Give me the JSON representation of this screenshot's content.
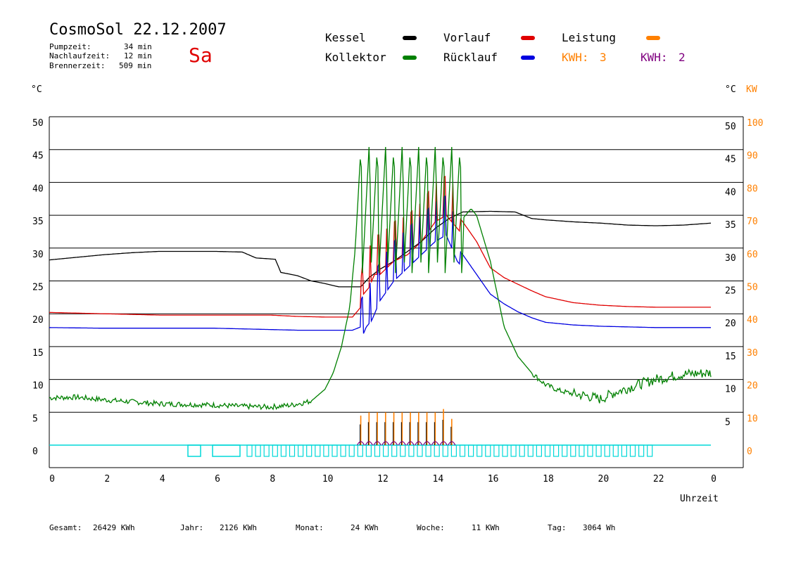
{
  "header": {
    "title": "CosmoSol 22.12.2007",
    "day": "Sa",
    "stats": [
      {
        "label": "Pumpzeit:",
        "value": "34 min"
      },
      {
        "label": "Nachlaufzeit:",
        "value": "12 min"
      },
      {
        "label": "Brennerzeit:",
        "value": "509 min"
      }
    ]
  },
  "legend": {
    "kessel": {
      "label": "Kessel",
      "color": "#000000"
    },
    "kollektor": {
      "label": "Kollektor",
      "color": "#008000"
    },
    "vorlauf": {
      "label": "Vorlauf",
      "color": "#e00000"
    },
    "ruecklauf": {
      "label": "Rücklauf",
      "color": "#0000e0"
    },
    "leistung": {
      "label": "Leistung",
      "color": "#ff8000"
    },
    "kwh1": {
      "label": "KWH:",
      "value": "3",
      "color": "#ff8000"
    },
    "kwh2": {
      "label": "KWH:",
      "value": "2",
      "color": "#800080"
    }
  },
  "axis_units": {
    "left": "°C",
    "right_temp": "°C",
    "right_power": "KW",
    "x": "Uhrzeit"
  },
  "footer": [
    {
      "label": "Gesamt:",
      "value": "26429 KWh"
    },
    {
      "label": "Jahr:",
      "value": "2126 KWh"
    },
    {
      "label": "Monat:",
      "value": "24 KWh"
    },
    {
      "label": "Woche:",
      "value": "11 KWh"
    },
    {
      "label": "Tag:",
      "value": "3064 Wh"
    }
  ],
  "chart_data": {
    "type": "line",
    "title": "CosmoSol 22.12.2007",
    "xlabel": "Uhrzeit",
    "ylabel": "°C",
    "xlim": [
      0,
      24
    ],
    "ylim": [
      0,
      50
    ],
    "y2lim": [
      0,
      100
    ],
    "x_ticks": [
      "0",
      "2",
      "4",
      "6",
      "8",
      "10",
      "12",
      "14",
      "16",
      "18",
      "20",
      "22",
      "0"
    ],
    "y_ticks": [
      "0",
      "5",
      "10",
      "15",
      "20",
      "25",
      "30",
      "35",
      "40",
      "45",
      "50"
    ],
    "y_ticks_right": [
      "5",
      "10",
      "15",
      "20",
      "25",
      "30",
      "35",
      "40",
      "45",
      "50"
    ],
    "y2_ticks": [
      "0",
      "10",
      "20",
      "30",
      "40",
      "50",
      "60",
      "70",
      "80",
      "90",
      "100"
    ],
    "grid": true,
    "series": [
      {
        "name": "Kessel",
        "color": "#000000",
        "x": [
          0,
          1,
          2,
          3,
          4,
          5,
          6,
          7,
          7.5,
          8.2,
          8.4,
          9,
          9.5,
          10,
          10.5,
          11.3,
          11.6,
          12,
          12.5,
          13,
          13.5,
          14,
          14.5,
          15,
          16,
          16.9,
          17.5,
          18,
          19,
          20,
          21,
          22,
          23,
          24
        ],
        "values": [
          28.2,
          28.6,
          29.0,
          29.3,
          29.5,
          29.5,
          29.5,
          29.4,
          28.5,
          28.3,
          26.3,
          25.8,
          25.0,
          24.6,
          24.1,
          24.1,
          25.5,
          26.8,
          28.0,
          29.5,
          31.0,
          33.0,
          34.5,
          35.5,
          35.6,
          35.5,
          34.5,
          34.3,
          34.0,
          33.8,
          33.5,
          33.4,
          33.5,
          33.8
        ]
      },
      {
        "name": "Vorlauf",
        "color": "#e00000",
        "x": [
          0,
          2,
          4,
          6,
          8,
          9,
          10,
          11,
          11.3,
          11.4,
          11.6,
          11.8,
          12,
          12.5,
          13,
          13.5,
          14,
          14.4,
          14.8,
          15,
          15.5,
          16,
          16.5,
          17,
          17.5,
          18,
          19,
          20,
          21,
          22,
          23,
          24
        ],
        "values": [
          20.2,
          20.0,
          19.8,
          19.8,
          19.8,
          19.6,
          19.5,
          19.5,
          21,
          25,
          26,
          28,
          28,
          30,
          31,
          33,
          36,
          37,
          35,
          34,
          31,
          27,
          25.5,
          24.5,
          23.5,
          22.6,
          21.7,
          21.3,
          21.1,
          21.0,
          21.0,
          21.0
        ]
      },
      {
        "name": "Rücklauf",
        "color": "#0000e0",
        "x": [
          0,
          2,
          4,
          6,
          8,
          9,
          10,
          11,
          11.3,
          11.5,
          11.7,
          12,
          12.5,
          13,
          13.5,
          14,
          14.4,
          14.8,
          15,
          15.5,
          16,
          16.5,
          17,
          17.5,
          18,
          19,
          20,
          21,
          22,
          23,
          24
        ],
        "values": [
          17.9,
          17.8,
          17.8,
          17.8,
          17.6,
          17.5,
          17.5,
          17.5,
          18,
          20,
          21,
          24,
          27,
          29,
          31,
          33,
          34,
          30,
          29,
          26,
          23,
          21.5,
          20.3,
          19.4,
          18.7,
          18.3,
          18.1,
          18.0,
          17.9,
          17.9,
          17.9
        ]
      },
      {
        "name": "Kollektor",
        "color": "#008000",
        "x": [
          0,
          1,
          2,
          3,
          4,
          5,
          6,
          7,
          8,
          8.8,
          9.5,
          10,
          10.3,
          10.6,
          10.9,
          11.1,
          11.3,
          11.6,
          12,
          12.5,
          13,
          13.5,
          14,
          14.5,
          15,
          15.3,
          15.5,
          16,
          16.5,
          17,
          17.5,
          18,
          18.5,
          19,
          19.5,
          20,
          20.5,
          21,
          21.5,
          22,
          22.5,
          23,
          24
        ],
        "values": [
          7.2,
          7.3,
          6.9,
          6.6,
          6.3,
          6.2,
          6.1,
          5.9,
          5.8,
          6.1,
          6.7,
          8.5,
          11,
          15,
          21,
          30,
          45,
          30,
          32,
          34,
          34,
          34,
          34,
          34,
          34.5,
          36,
          35,
          28,
          18,
          13.5,
          11,
          9.2,
          8.3,
          7.8,
          7.5,
          7.0,
          8.0,
          8.7,
          9.4,
          10.0,
          10.4,
          10.8,
          11.0
        ]
      },
      {
        "name": "Leistung",
        "color": "#ff8000",
        "axis": "right",
        "x": [
          11.3,
          11.6,
          11.9,
          12.2,
          12.5,
          12.8,
          13.1,
          13.4,
          13.7,
          14.0,
          14.3,
          14.6
        ],
        "values": [
          9,
          10,
          10,
          10,
          10,
          10,
          10,
          10,
          10,
          10,
          11,
          8
        ]
      }
    ],
    "annotations": [
      "Pumpzeit: 34 min",
      "Nachlaufzeit: 12 min",
      "Brennerzeit: 509 min"
    ]
  }
}
